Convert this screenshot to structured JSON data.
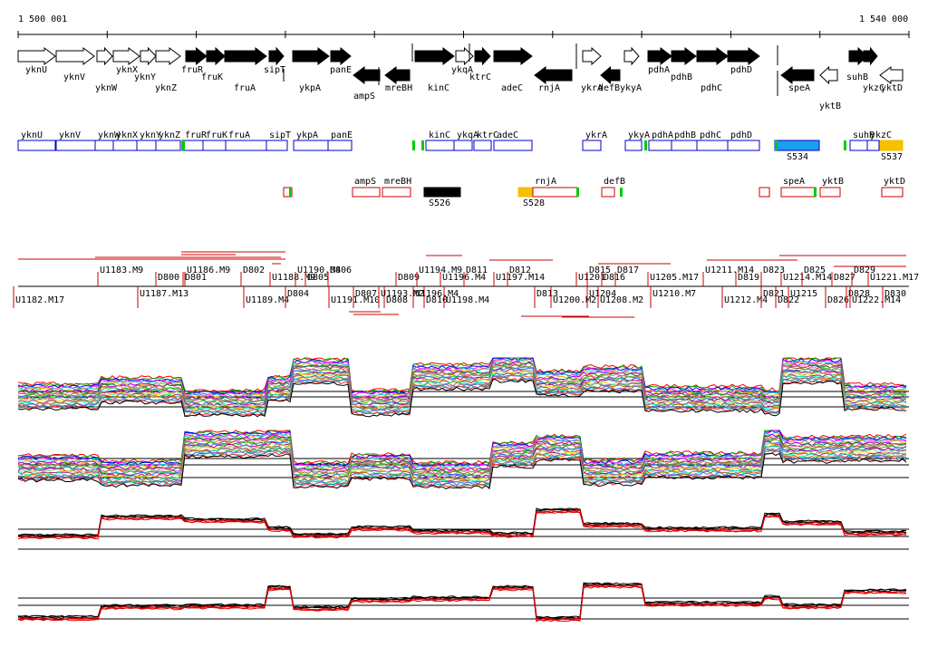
{
  "ruler": {
    "start_label": "1 500 001",
    "end_label": "1 540 000"
  },
  "colors": {
    "forward_fill": "#000000",
    "reverse_fill": "#000000",
    "outline": "#000000",
    "blue": "#0000cc",
    "red": "#cc0000",
    "green": "#00cc00",
    "black": "#000000",
    "orange": "#f5c000",
    "cyan": "#1aa0f0",
    "trace_red": "#dd0000"
  },
  "genes": [
    {
      "name": "yknU",
      "strand": "+",
      "filled": false
    },
    {
      "name": "yknV",
      "strand": "+",
      "filled": false
    },
    {
      "name": "yknW",
      "strand": "+",
      "filled": false
    },
    {
      "name": "yknX",
      "strand": "+",
      "filled": false
    },
    {
      "name": "yknY",
      "strand": "+",
      "filled": false
    },
    {
      "name": "yknZ",
      "strand": "+",
      "filled": false
    },
    {
      "name": "fruR",
      "strand": "+",
      "filled": true
    },
    {
      "name": "fruK",
      "strand": "+",
      "filled": true
    },
    {
      "name": "fruA",
      "strand": "+",
      "filled": true
    },
    {
      "name": "sipT",
      "strand": "+",
      "filled": true
    },
    {
      "name": "ykpA",
      "strand": "+",
      "filled": true
    },
    {
      "name": "panE",
      "strand": "+",
      "filled": true
    },
    {
      "name": "ampS",
      "strand": "-",
      "filled": true
    },
    {
      "name": "mreBH",
      "strand": "-",
      "filled": true
    },
    {
      "name": "kinC",
      "strand": "+",
      "filled": true
    },
    {
      "name": "ykqA",
      "strand": "+",
      "filled": false
    },
    {
      "name": "ktrC",
      "strand": "+",
      "filled": true
    },
    {
      "name": "adeC",
      "strand": "+",
      "filled": true
    },
    {
      "name": "rnjA",
      "strand": "-",
      "filled": true
    },
    {
      "name": "ykrA",
      "strand": "+",
      "filled": false
    },
    {
      "name": "defB",
      "strand": "-",
      "filled": true
    },
    {
      "name": "ykyA",
      "strand": "+",
      "filled": false
    },
    {
      "name": "pdhA",
      "strand": "+",
      "filled": true
    },
    {
      "name": "pdhB",
      "strand": "+",
      "filled": true
    },
    {
      "name": "pdhC",
      "strand": "+",
      "filled": true
    },
    {
      "name": "pdhD",
      "strand": "+",
      "filled": true
    },
    {
      "name": "speA",
      "strand": "-",
      "filled": true
    },
    {
      "name": "yktB",
      "strand": "-",
      "filled": false
    },
    {
      "name": "suhB",
      "strand": "+",
      "filled": true
    },
    {
      "name": "ykzC",
      "strand": "+",
      "filled": true
    },
    {
      "name": "yktD",
      "strand": "-",
      "filled": false
    }
  ],
  "upper_boxes": [
    {
      "label": "yknU"
    },
    {
      "label": "yknV"
    },
    {
      "label": "yknW"
    },
    {
      "label": "yknX"
    },
    {
      "label": "yknY"
    },
    {
      "label": "yknZ"
    },
    {
      "label": "fruR"
    },
    {
      "label": "fruK"
    },
    {
      "label": "fruA"
    },
    {
      "label": "sipT"
    },
    {
      "label": "ykpA"
    },
    {
      "label": "panE"
    },
    {
      "label": "kinC"
    },
    {
      "label": "ykqA"
    },
    {
      "label": "ktrC"
    },
    {
      "label": "adeC"
    },
    {
      "label": "ykrA"
    },
    {
      "label": "ykyA"
    },
    {
      "label": "pdhA"
    },
    {
      "label": "pdhB"
    },
    {
      "label": "pdhC"
    },
    {
      "label": "pdhD"
    },
    {
      "label": "S534"
    },
    {
      "label": "suhB"
    },
    {
      "label": "ykzC"
    },
    {
      "label": "S537"
    }
  ],
  "lower_boxes": [
    {
      "label": ""
    },
    {
      "label": "ampS"
    },
    {
      "label": "mreBH"
    },
    {
      "label": "S526"
    },
    {
      "label": "S528"
    },
    {
      "label": "rnjA"
    },
    {
      "label": "defB"
    },
    {
      "label": ""
    },
    {
      "label": "speA"
    },
    {
      "label": "yktB"
    },
    {
      "label": "yktD"
    }
  ],
  "features_above": [
    "U1183.M9",
    "D800",
    "U1186.M9",
    "D801",
    "D802",
    "U1188.M9",
    "U1190.M4",
    "D805",
    "D806",
    "D809",
    "U1194.M9",
    "U1196.M4",
    "D811",
    "U1197.M14",
    "D812",
    "U1201",
    "D815",
    "D816",
    "D817",
    "U1205.M17",
    "U1211.M14",
    "D819",
    "D823",
    "U1214.M14",
    "D825",
    "D827",
    "D829",
    "U1221.M17"
  ],
  "features_below": [
    "U1182.M17",
    "U1187.M13",
    "U1189.M4",
    "D804",
    "U1191.M10",
    "D807",
    "D808",
    "U1193.M2",
    "D810",
    "U1196.M4",
    "U1198.M4",
    "D813",
    "U1200.M2",
    "U1204",
    "U1208.M2",
    "U1210.M7",
    "U1212.M4",
    "D821",
    "D822",
    "U1215",
    "D826",
    "D828",
    "U1222.M14",
    "D830"
  ]
}
